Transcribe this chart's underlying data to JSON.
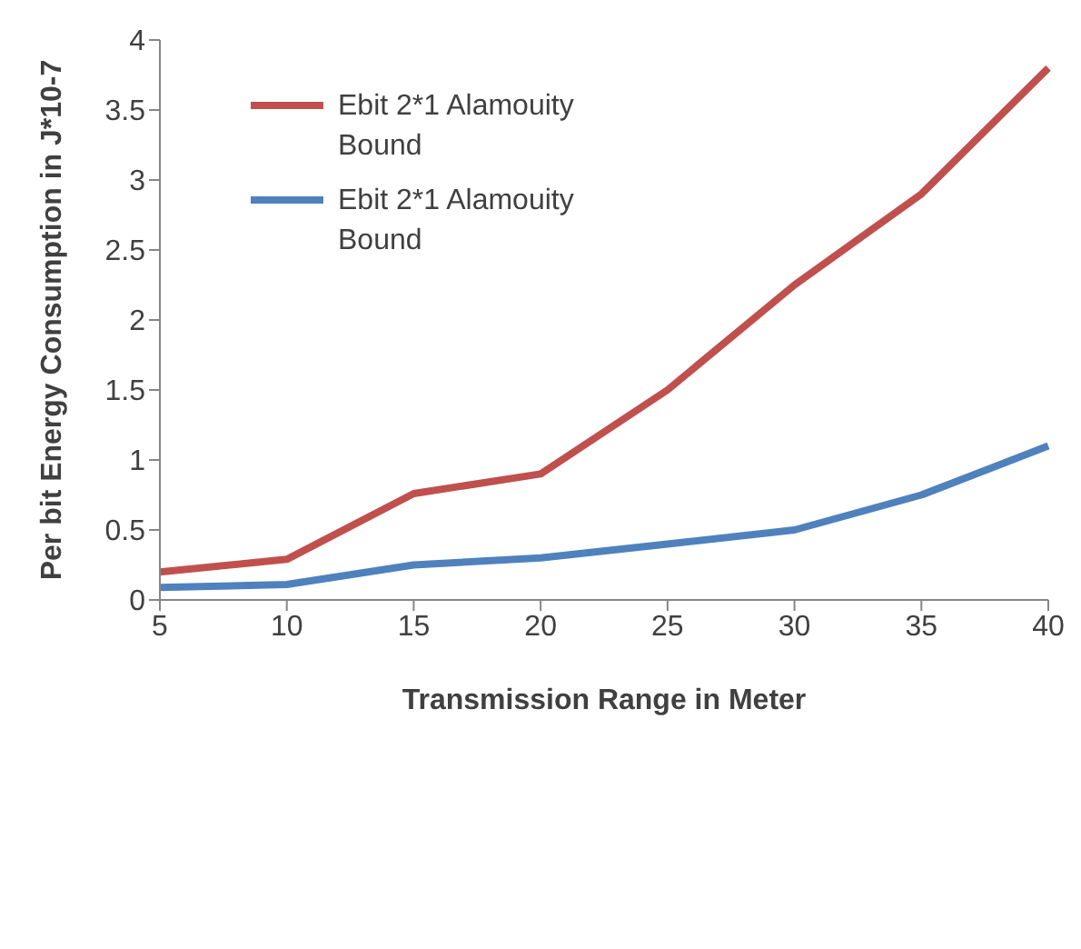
{
  "chart_data": {
    "type": "line",
    "xlabel": "Transmission Range in Meter",
    "ylabel": "Per bit Energy Consumption in  J*10-7",
    "categories": [
      "5",
      "10",
      "15",
      "20",
      "25",
      "30",
      "35",
      "40"
    ],
    "series": [
      {
        "name": "Ebit 2*1 Alamouity Bound",
        "color": "#c0504d",
        "values": [
          0.2,
          0.29,
          0.76,
          0.9,
          1.5,
          2.25,
          2.9,
          3.8
        ]
      },
      {
        "name": "Ebit 2*1 Alamouity Bound",
        "color": "#4f81bd",
        "values": [
          0.09,
          0.11,
          0.25,
          0.3,
          0.4,
          0.5,
          0.75,
          1.1
        ]
      }
    ],
    "ylim": [
      0,
      4
    ],
    "yticks": [
      0,
      0.5,
      1,
      1.5,
      2,
      2.5,
      3,
      3.5,
      4
    ],
    "grid": false,
    "legend": "top left",
    "marker": "none",
    "line_style": "solid"
  }
}
